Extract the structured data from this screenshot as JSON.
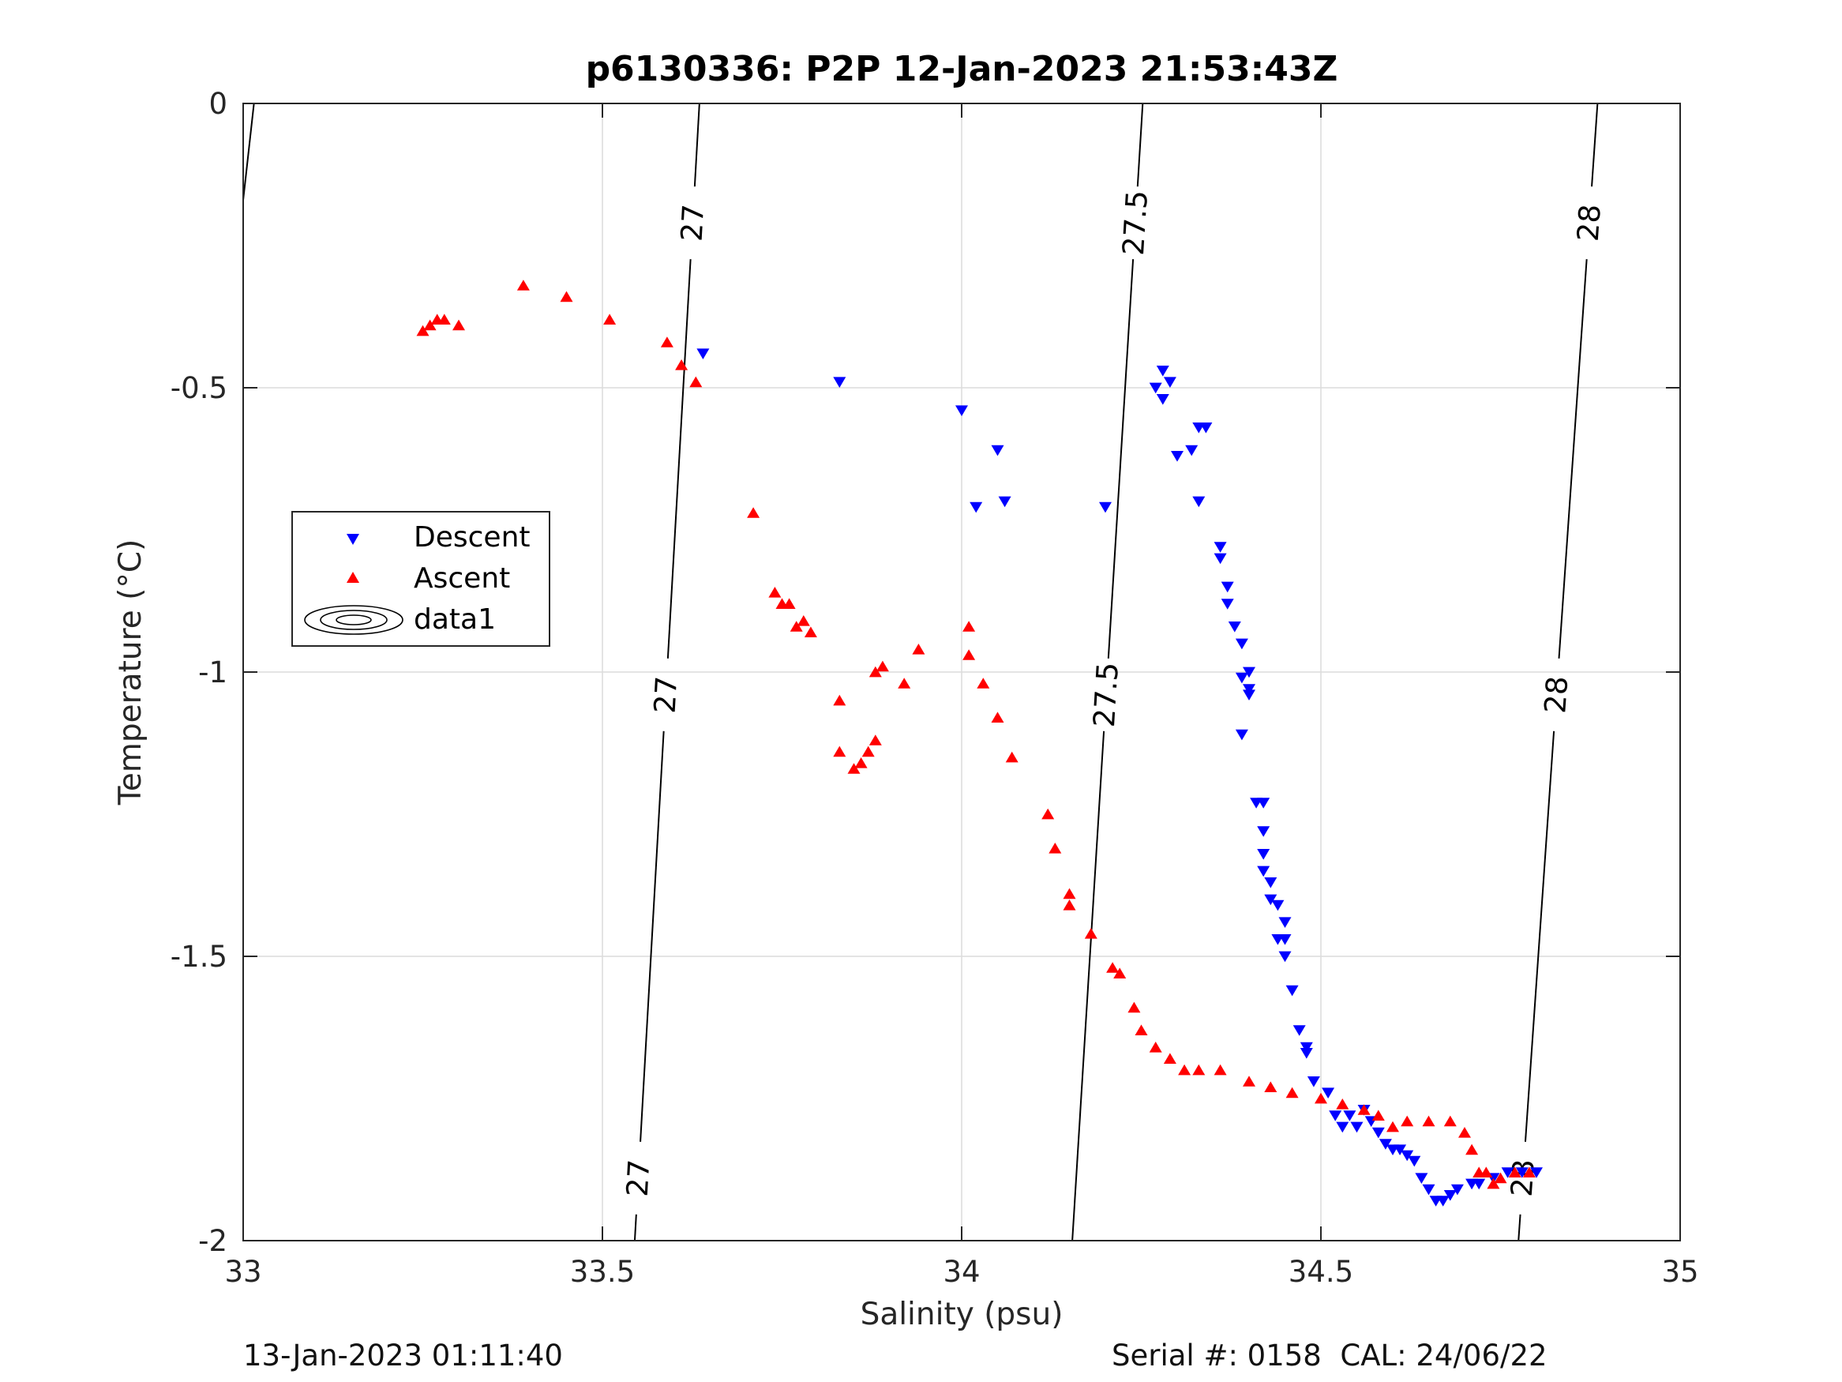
{
  "chart_data": {
    "type": "scatter",
    "title": "p6130336: P2P 12-Jan-2023 21:53:43Z",
    "xlabel": "Salinity (psu)",
    "ylabel": "Temperature (°C)",
    "xlim": [
      33,
      35
    ],
    "ylim": [
      -2,
      0
    ],
    "x_ticks": [
      33,
      33.5,
      34,
      34.5,
      35
    ],
    "x_tick_labels": [
      "33",
      "33.5",
      "34",
      "34.5",
      "35"
    ],
    "y_ticks": [
      -2,
      -1.5,
      -1,
      -0.5,
      0
    ],
    "y_tick_labels": [
      "-2",
      "-1.5",
      "-1",
      "-0.5",
      "0"
    ],
    "grid": true,
    "legend_position": "middle-left",
    "legend": [
      {
        "label": "Descent",
        "marker": "triangle-down",
        "color": "#0000ff"
      },
      {
        "label": "Ascent",
        "marker": "triangle-up",
        "color": "#ff0000"
      },
      {
        "label": "data1",
        "marker": "contour",
        "color": "#000000"
      }
    ],
    "series": [
      {
        "name": "Descent",
        "marker": "triangle-down",
        "color": "#0000ff",
        "points": [
          [
            33.64,
            -0.44
          ],
          [
            33.83,
            -0.49
          ],
          [
            34.0,
            -0.54
          ],
          [
            34.02,
            -0.71
          ],
          [
            34.05,
            -0.61
          ],
          [
            34.06,
            -0.7
          ],
          [
            34.2,
            -0.71
          ],
          [
            34.28,
            -0.47
          ],
          [
            34.29,
            -0.49
          ],
          [
            34.27,
            -0.5
          ],
          [
            34.28,
            -0.52
          ],
          [
            34.3,
            -0.62
          ],
          [
            34.32,
            -0.61
          ],
          [
            34.33,
            -0.57
          ],
          [
            34.34,
            -0.57
          ],
          [
            34.33,
            -0.7
          ],
          [
            34.36,
            -0.78
          ],
          [
            34.36,
            -0.8
          ],
          [
            34.37,
            -0.85
          ],
          [
            34.37,
            -0.88
          ],
          [
            34.38,
            -0.92
          ],
          [
            34.39,
            -0.95
          ],
          [
            34.39,
            -1.01
          ],
          [
            34.4,
            -1.0
          ],
          [
            34.4,
            -1.03
          ],
          [
            34.4,
            -1.04
          ],
          [
            34.39,
            -1.11
          ],
          [
            34.41,
            -1.23
          ],
          [
            34.42,
            -1.23
          ],
          [
            34.42,
            -1.28
          ],
          [
            34.42,
            -1.32
          ],
          [
            34.42,
            -1.35
          ],
          [
            34.43,
            -1.37
          ],
          [
            34.43,
            -1.4
          ],
          [
            34.44,
            -1.41
          ],
          [
            34.45,
            -1.44
          ],
          [
            34.44,
            -1.47
          ],
          [
            34.45,
            -1.47
          ],
          [
            34.45,
            -1.5
          ],
          [
            34.46,
            -1.56
          ],
          [
            34.47,
            -1.63
          ],
          [
            34.48,
            -1.66
          ],
          [
            34.48,
            -1.67
          ],
          [
            34.49,
            -1.72
          ],
          [
            34.51,
            -1.74
          ],
          [
            34.52,
            -1.78
          ],
          [
            34.53,
            -1.8
          ],
          [
            34.54,
            -1.78
          ],
          [
            34.55,
            -1.8
          ],
          [
            34.56,
            -1.77
          ],
          [
            34.57,
            -1.79
          ],
          [
            34.58,
            -1.81
          ],
          [
            34.59,
            -1.83
          ],
          [
            34.6,
            -1.84
          ],
          [
            34.61,
            -1.84
          ],
          [
            34.62,
            -1.85
          ],
          [
            34.63,
            -1.86
          ],
          [
            34.64,
            -1.89
          ],
          [
            34.65,
            -1.91
          ],
          [
            34.66,
            -1.93
          ],
          [
            34.67,
            -1.93
          ],
          [
            34.68,
            -1.92
          ],
          [
            34.69,
            -1.91
          ],
          [
            34.71,
            -1.9
          ],
          [
            34.72,
            -1.9
          ],
          [
            34.74,
            -1.89
          ],
          [
            34.76,
            -1.88
          ],
          [
            34.78,
            -1.88
          ],
          [
            34.8,
            -1.88
          ]
        ]
      },
      {
        "name": "Ascent",
        "marker": "triangle-up",
        "color": "#ff0000",
        "points": [
          [
            33.25,
            -0.4
          ],
          [
            33.26,
            -0.39
          ],
          [
            33.27,
            -0.38
          ],
          [
            33.28,
            -0.38
          ],
          [
            33.3,
            -0.39
          ],
          [
            33.39,
            -0.32
          ],
          [
            33.45,
            -0.34
          ],
          [
            33.51,
            -0.38
          ],
          [
            33.59,
            -0.42
          ],
          [
            33.61,
            -0.46
          ],
          [
            33.63,
            -0.49
          ],
          [
            33.71,
            -0.72
          ],
          [
            33.74,
            -0.86
          ],
          [
            33.75,
            -0.88
          ],
          [
            33.76,
            -0.88
          ],
          [
            33.77,
            -0.92
          ],
          [
            33.78,
            -0.91
          ],
          [
            33.79,
            -0.93
          ],
          [
            33.83,
            -1.05
          ],
          [
            33.83,
            -1.14
          ],
          [
            33.85,
            -1.17
          ],
          [
            33.86,
            -1.16
          ],
          [
            33.87,
            -1.14
          ],
          [
            33.88,
            -1.12
          ],
          [
            33.88,
            -1.0
          ],
          [
            33.89,
            -0.99
          ],
          [
            33.92,
            -1.02
          ],
          [
            33.94,
            -0.96
          ],
          [
            34.01,
            -0.92
          ],
          [
            34.01,
            -0.97
          ],
          [
            34.03,
            -1.02
          ],
          [
            34.05,
            -1.08
          ],
          [
            34.07,
            -1.15
          ],
          [
            34.12,
            -1.25
          ],
          [
            34.13,
            -1.31
          ],
          [
            34.15,
            -1.39
          ],
          [
            34.15,
            -1.41
          ],
          [
            34.18,
            -1.46
          ],
          [
            34.21,
            -1.52
          ],
          [
            34.22,
            -1.53
          ],
          [
            34.24,
            -1.59
          ],
          [
            34.25,
            -1.63
          ],
          [
            34.27,
            -1.66
          ],
          [
            34.29,
            -1.68
          ],
          [
            34.31,
            -1.7
          ],
          [
            34.33,
            -1.7
          ],
          [
            34.36,
            -1.7
          ],
          [
            34.4,
            -1.72
          ],
          [
            34.43,
            -1.73
          ],
          [
            34.46,
            -1.74
          ],
          [
            34.5,
            -1.75
          ],
          [
            34.53,
            -1.76
          ],
          [
            34.56,
            -1.77
          ],
          [
            34.58,
            -1.78
          ],
          [
            34.6,
            -1.8
          ],
          [
            34.62,
            -1.79
          ],
          [
            34.65,
            -1.79
          ],
          [
            34.68,
            -1.79
          ],
          [
            34.7,
            -1.81
          ],
          [
            34.71,
            -1.84
          ],
          [
            34.72,
            -1.88
          ],
          [
            34.73,
            -1.88
          ],
          [
            34.74,
            -1.9
          ],
          [
            34.75,
            -1.89
          ],
          [
            34.77,
            -1.88
          ],
          [
            34.79,
            -1.88
          ]
        ]
      }
    ],
    "isopycnals": [
      {
        "label": "27",
        "top": [
          33.635,
          0
        ],
        "bottom": [
          33.545,
          -2
        ],
        "label_y": [
          -0.21,
          -1.04,
          -1.89
        ]
      },
      {
        "label": "27.5",
        "top": [
          34.252,
          0
        ],
        "bottom": [
          34.154,
          -2
        ],
        "label_y": [
          -0.21,
          -1.04
        ]
      },
      {
        "label": "28",
        "top": [
          34.885,
          0
        ],
        "bottom": [
          34.775,
          -2
        ],
        "label_y": [
          -0.21,
          -1.04,
          -1.89
        ]
      }
    ],
    "partial_contour": {
      "top": [
        33.015,
        0
      ],
      "bottom": [
        33.0,
        -0.17
      ]
    }
  },
  "footer": {
    "timestamp": "13-Jan-2023 01:11:40",
    "serial": "Serial #: 0158  CAL: 24/06/22"
  }
}
